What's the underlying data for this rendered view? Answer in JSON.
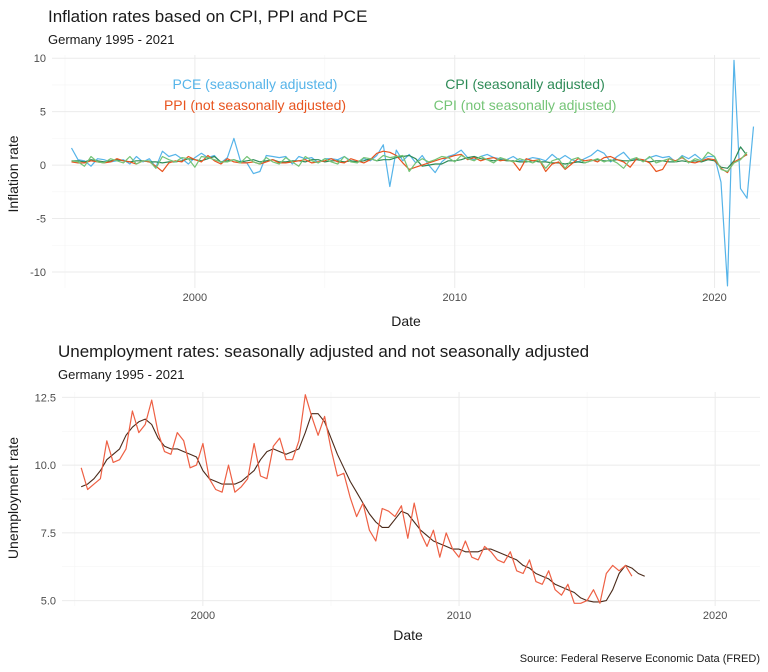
{
  "caption": "Source: Federal Reserve Economic Data (FRED)",
  "colors": {
    "pce": "#56B4E9",
    "cpi_sa": "#2E8B57",
    "ppi": "#E8541F",
    "cpi_nsa": "#74C476",
    "unemp_sa": "#4a2a1a",
    "unemp_nsa": "#EE6044"
  },
  "chart_data": [
    {
      "type": "line",
      "title": "Inflation rates based on CPI, PPI and PCE",
      "subtitle": "Germany 1995 - 2021",
      "xlabel": "Date",
      "ylabel": "Inflation rate",
      "xlim": [
        1994.5,
        2021.75
      ],
      "ylim": [
        -11.5,
        10.3
      ],
      "x_ticks": [
        2000,
        2010,
        2020
      ],
      "x_tick_labels": [
        "2000",
        "2010",
        "2020"
      ],
      "y_ticks": [
        -10,
        -5,
        0,
        5,
        10
      ],
      "y_tick_labels": [
        "-10",
        "-5",
        "0",
        "5",
        "10"
      ],
      "grid": true,
      "legend_placement": "inside-top",
      "legend": [
        {
          "label": "PCE (seasonally adjusted)",
          "key": "pce"
        },
        {
          "label": "CPI (seasonally adjusted)",
          "key": "cpi_sa"
        },
        {
          "label": "PPI (not seasonally adjusted)",
          "key": "ppi"
        },
        {
          "label": "CPI (not seasonally adjusted)",
          "key": "cpi_nsa"
        }
      ],
      "x_start": 1995.25,
      "x_step": 0.25,
      "series": [
        {
          "name": "PCE (seasonally adjusted)",
          "key": "pce",
          "values": [
            1.6,
            0.5,
            0.4,
            -0.1,
            0.6,
            0.5,
            0.3,
            0.4,
            0.5,
            0.1,
            0.8,
            0.3,
            0.6,
            -0.2,
            1.3,
            0.8,
            1.0,
            0.6,
            0.1,
            0.7,
            1.1,
            0.7,
            0.9,
            0.2,
            0.7,
            2.5,
            0.4,
            0.2,
            -0.8,
            -0.6,
            0.9,
            0.8,
            0.7,
            0.8,
            0.1,
            0.8,
            0.6,
            0.7,
            0.2,
            0.6,
            0.6,
            0.5,
            0.8,
            0.4,
            0.3,
            0.6,
            0.4,
            0.9,
            1.9,
            -2.0,
            1.4,
            0.4,
            1.0,
            0.2,
            0.9,
            0.0,
            -0.7,
            0.3,
            0.8,
            1.0,
            1.4,
            0.7,
            0.5,
            0.8,
            1.0,
            0.7,
            0.6,
            0.5,
            0.8,
            0.4,
            0.5,
            0.7,
            0.6,
            0.4,
            1.0,
            0.5,
            0.9,
            0.5,
            0.3,
            0.6,
            0.9,
            1.4,
            1.1,
            0.3,
            0.8,
            1.2,
            0.5,
            0.6,
            0.4,
            0.7,
            0.9,
            0.7,
            0.8,
            0.3,
            0.9,
            0.6,
            1.0,
            0.5,
            0.8,
            0.8,
            -1.6,
            -11.3,
            9.8,
            -2.2,
            -3.1,
            3.6
          ]
        },
        {
          "name": "CPI (seasonally adjusted)",
          "key": "cpi_sa",
          "values": [
            0.4,
            0.4,
            0.3,
            0.5,
            0.4,
            0.3,
            0.4,
            0.5,
            0.4,
            0.3,
            0.4,
            0.4,
            0.3,
            0.3,
            0.2,
            0.3,
            0.3,
            0.4,
            0.6,
            0.5,
            0.4,
            0.6,
            0.8,
            0.3,
            0.4,
            0.5,
            0.3,
            0.4,
            0.5,
            0.3,
            0.4,
            0.5,
            0.3,
            0.3,
            0.4,
            0.4,
            0.3,
            0.5,
            0.5,
            0.3,
            0.4,
            0.4,
            0.3,
            0.4,
            0.3,
            0.4,
            0.6,
            0.4,
            0.5,
            0.5,
            0.7,
            0.8,
            0.9,
            0.6,
            -0.1,
            0.0,
            0.1,
            0.1,
            0.4,
            0.4,
            0.5,
            0.7,
            0.8,
            0.6,
            0.5,
            0.4,
            0.5,
            0.4,
            0.4,
            0.3,
            0.3,
            0.4,
            0.3,
            0.3,
            0.2,
            0.2,
            0.1,
            0.2,
            0.3,
            0.2,
            0.4,
            0.5,
            0.4,
            0.4,
            0.5,
            0.4,
            0.4,
            0.5,
            0.4,
            0.3,
            0.4,
            0.4,
            0.3,
            0.3,
            0.4,
            0.3,
            0.4,
            0.3,
            0.5,
            0.4,
            -0.2,
            -0.3,
            0.4,
            1.7,
            0.9
          ]
        },
        {
          "name": "PPI (not seasonally adjusted)",
          "key": "ppi",
          "values": [
            0.3,
            0.2,
            0.2,
            0.4,
            0.3,
            0.2,
            0.3,
            0.6,
            0.4,
            0.3,
            0.1,
            0.4,
            0.3,
            -0.1,
            -0.6,
            0.2,
            0.4,
            0.3,
            0.8,
            0.5,
            0.3,
            0.9,
            0.4,
            0.1,
            0.6,
            0.3,
            0.2,
            0.2,
            0.3,
            0.1,
            0.3,
            0.5,
            0.2,
            0.2,
            0.3,
            0.4,
            0.5,
            0.2,
            0.3,
            0.4,
            0.6,
            0.3,
            0.2,
            0.6,
            0.4,
            0.2,
            0.5,
            1.1,
            1.3,
            1.2,
            0.9,
            0.2,
            -0.4,
            -0.2,
            0.0,
            0.2,
            0.4,
            0.6,
            0.7,
            0.9,
            1.0,
            0.5,
            0.7,
            0.4,
            0.6,
            0.7,
            0.4,
            0.5,
            0.3,
            -0.5,
            0.6,
            0.4,
            0.5,
            -0.6,
            0.1,
            0.3,
            -0.4,
            0.1,
            0.6,
            0.4,
            0.5,
            0.3,
            0.7,
            0.8,
            0.5,
            0.3,
            -0.2,
            0.6,
            0.5,
            0.2,
            -0.6,
            -0.4,
            0.6,
            0.4,
            0.7,
            0.3,
            0.2,
            0.4,
            0.6,
            0.5,
            -0.3,
            -0.7,
            0.3,
            0.6,
            1.0
          ]
        },
        {
          "name": "CPI (not seasonally adjusted)",
          "key": "cpi_nsa",
          "values": [
            0.4,
            0.3,
            -0.1,
            0.8,
            0.3,
            0.2,
            0.6,
            0.4,
            0.2,
            0.8,
            0.1,
            0.4,
            0.4,
            -0.3,
            0.8,
            0.5,
            0.3,
            0.7,
            0.6,
            -0.2,
            0.8,
            0.7,
            0.5,
            0.3,
            0.3,
            0.5,
            0.2,
            0.8,
            0.3,
            0.1,
            0.7,
            0.3,
            0.1,
            0.7,
            0.3,
            -0.1,
            0.8,
            0.4,
            0.2,
            0.6,
            0.3,
            0.1,
            0.8,
            0.3,
            0.2,
            0.7,
            0.6,
            0.4,
            0.9,
            0.7,
            0.8,
            0.9,
            -0.6,
            0.2,
            0.6,
            0.3,
            0.5,
            0.8,
            0.7,
            0.3,
            0.9,
            0.6,
            0.4,
            0.8,
            0.5,
            0.2,
            0.7,
            0.5,
            0.3,
            0.6,
            0.4,
            0.2,
            0.5,
            -0.3,
            0.4,
            0.6,
            -0.3,
            0.5,
            0.7,
            0.2,
            0.4,
            0.6,
            0.3,
            0.5,
            0.2,
            -0.3,
            0.5,
            0.7,
            0.3,
            0.8,
            0.2,
            0.4,
            0.6,
            0.3,
            0.8,
            0.2,
            0.6,
            0.4,
            1.2,
            0.8,
            -0.4,
            -0.6,
            0.2,
            0.5,
            1.2
          ]
        }
      ]
    },
    {
      "type": "line",
      "title": "Unemployment rates: seasonally adjusted and not seasonally adjusted",
      "subtitle": "Germany 1995 - 2021",
      "xlabel": "Date",
      "ylabel": "Unemployment rate",
      "xlim": [
        1994.5,
        2021.75
      ],
      "ylim": [
        4.8,
        12.7
      ],
      "x_ticks": [
        2000,
        2010,
        2020
      ],
      "x_tick_labels": [
        "2000",
        "2010",
        "2020"
      ],
      "y_ticks": [
        5.0,
        7.5,
        10.0,
        12.5
      ],
      "y_tick_labels": [
        "5.0",
        "7.5",
        "10.0",
        "12.5"
      ],
      "grid": true,
      "x_start": 1995.25,
      "x_step": 0.25,
      "series": [
        {
          "name": "seasonally adjusted",
          "key": "unemp_sa",
          "values": [
            9.2,
            9.3,
            9.5,
            9.8,
            10.2,
            10.4,
            10.6,
            11.1,
            11.4,
            11.6,
            11.7,
            11.5,
            11.0,
            10.7,
            10.6,
            10.6,
            10.5,
            10.4,
            10.3,
            9.8,
            9.5,
            9.4,
            9.3,
            9.3,
            9.3,
            9.4,
            9.6,
            9.8,
            10.2,
            10.5,
            10.6,
            10.5,
            10.4,
            10.5,
            10.6,
            11.2,
            11.9,
            11.9,
            11.6,
            11.0,
            10.4,
            9.9,
            9.4,
            9.0,
            8.6,
            8.2,
            7.9,
            7.7,
            7.7,
            8.0,
            8.3,
            8.2,
            7.9,
            7.6,
            7.4,
            7.2,
            7.1,
            7.0,
            6.9,
            6.9,
            6.8,
            6.8,
            6.8,
            6.9,
            6.9,
            6.8,
            6.7,
            6.6,
            6.5,
            6.3,
            6.2,
            6.0,
            5.9,
            5.8,
            5.6,
            5.5,
            5.4,
            5.3,
            5.1,
            5.0,
            4.95,
            4.95,
            5.0,
            5.4,
            6.0,
            6.3,
            6.2,
            6.0,
            5.9
          ]
        },
        {
          "name": "not seasonally adjusted",
          "key": "unemp_nsa",
          "values": [
            9.9,
            9.1,
            9.3,
            9.5,
            10.9,
            10.1,
            10.2,
            10.6,
            12.0,
            11.2,
            11.5,
            12.4,
            11.2,
            10.5,
            10.4,
            11.2,
            10.9,
            9.9,
            10.0,
            10.8,
            9.5,
            9.1,
            9.0,
            10.0,
            9.0,
            9.2,
            9.5,
            10.8,
            9.6,
            9.5,
            10.7,
            11.0,
            10.2,
            10.2,
            10.9,
            12.6,
            11.8,
            11.1,
            11.8,
            10.6,
            9.6,
            9.7,
            8.8,
            8.1,
            8.6,
            7.6,
            7.2,
            8.4,
            8.3,
            8.1,
            8.5,
            7.3,
            8.6,
            7.5,
            7.0,
            7.6,
            6.6,
            7.5,
            6.9,
            6.6,
            7.2,
            6.6,
            6.5,
            7.0,
            6.8,
            6.5,
            6.4,
            6.8,
            6.1,
            6.0,
            6.5,
            5.7,
            5.6,
            6.1,
            5.4,
            5.2,
            5.6,
            4.9,
            4.9,
            5.0,
            5.4,
            4.9,
            6.0,
            6.3,
            6.1,
            6.3,
            5.9
          ]
        }
      ]
    }
  ]
}
